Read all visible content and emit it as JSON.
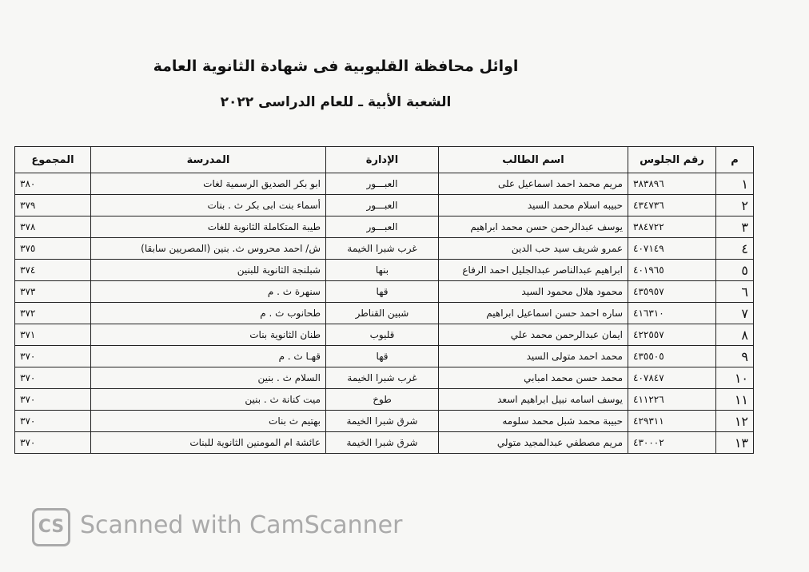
{
  "header": {
    "title": "اوائل محافظة القليوبية فى شهادة الثانوية العامة",
    "subtitle": "الشعبة الأبية ـ للعام الدراسى ٢٠٢٢"
  },
  "table": {
    "columns": [
      "م",
      "رقم الجلوس",
      "اسم الطالب",
      "الإدارة",
      "المدرسة",
      "المجموع"
    ],
    "rows": [
      [
        "١",
        "٣٨٣٨٩٦",
        "مريم محمد احمد اسماعيل على",
        "العبـــور",
        "ابو بكر الصديق الرسمية لغات",
        "٣٨٠"
      ],
      [
        "٢",
        "٤٣٤٧٣٦",
        "حبيبه اسلام محمد السيد",
        "العبـــور",
        "أسماء بنت ابى بكر ث . بنات",
        "٣٧٩"
      ],
      [
        "٣",
        "٣٨٤٧٢٢",
        "يوسف عبدالرحمن حسن محمد ابراهيم",
        "العبـــور",
        "طيبة المتكاملة الثانوية للغات",
        "٣٧٨"
      ],
      [
        "٤",
        "٤٠٧١٤٩",
        "عمرو شريف سيد حب الدين",
        "غرب شبرا الخيمة",
        "ش/ احمد محروس ث. بنين (المصريين سابقا)",
        "٣٧٥"
      ],
      [
        "٥",
        "٤٠١٩٦٥",
        "ابراهيم عبدالناصر عبدالجليل احمد الرفاع",
        "بنها",
        "شبلنجة الثانوية للبنين",
        "٣٧٤"
      ],
      [
        "٦",
        "٤٣٥٩٥٧",
        "محمود هلال محمود السيد",
        "قها",
        "سنهرة ث . م",
        "٣٧٣"
      ],
      [
        "٧",
        "٤١٦٣١٠",
        "ساره احمد حسن اسماعيل ابراهيم",
        "شبين القناطر",
        "طحانوب ث . م",
        "٣٧٢"
      ],
      [
        "٨",
        "٤٢٢٥٥٧",
        "ايمان عبدالرحمن محمد علي",
        "قليوب",
        "طنان الثانوية بنات",
        "٣٧١"
      ],
      [
        "٩",
        "٤٣٥٥٠٥",
        "محمد احمد متولى السيد",
        "قها",
        "قهـا ث . م",
        "٣٧٠"
      ],
      [
        "١٠",
        "٤٠٧٨٤٧",
        "محمد حسن محمد امبابي",
        "غرب شبرا الخيمة",
        "السلام ث . بنين",
        "٣٧٠"
      ],
      [
        "١١",
        "٤١١٢٢٦",
        "يوسف اسامه نبيل ابراهيم اسعد",
        "طوخ",
        "ميت كنانة ث . بنين",
        "٣٧٠"
      ],
      [
        "١٢",
        "٤٢٩٣١١",
        "حبيبة محمد شبل محمد سلومه",
        "شرق شبرا الخيمة",
        "بهتيم ث بنات",
        "٣٧٠"
      ],
      [
        "١٣",
        "٤٣٠٠٠٢",
        "مريم مصطفي عبدالمجيد متولي",
        "شرق شبرا الخيمة",
        "عائشة ام المومنين الثانوية للبنات",
        "٣٧٠"
      ]
    ]
  },
  "watermark": {
    "logo": "CS",
    "text": "Scanned with CamScanner"
  }
}
